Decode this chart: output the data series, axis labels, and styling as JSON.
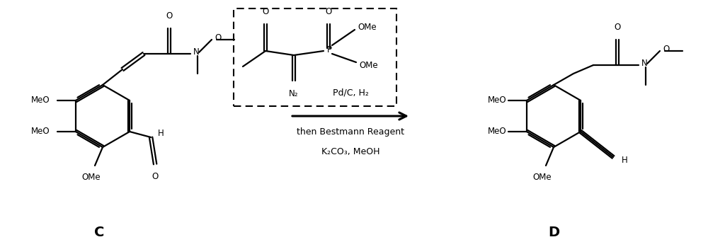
{
  "bg_color": "#ffffff",
  "label_C": "C",
  "label_D": "D",
  "arrow_text1": "Pd/C, H₂",
  "arrow_text2": "then Bestmann Reagent",
  "arrow_text3": "K₂CO₃, MeOH",
  "fs": 8.5,
  "fs_label": 14,
  "lw": 1.6
}
